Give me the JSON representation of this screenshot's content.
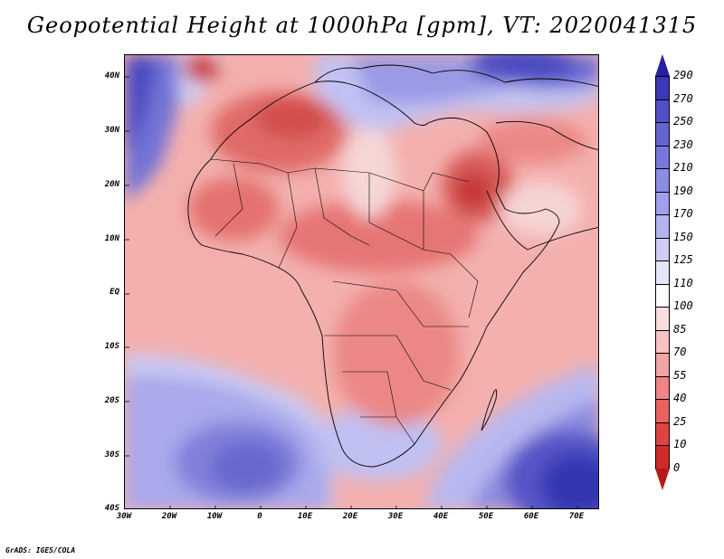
{
  "title": "Geopotential Height at 1000hPa [gpm], VT: 2020041315",
  "credit": "GrADS: IGES/COLA",
  "lat_labels": [
    "40N",
    "30N",
    "20N",
    "10N",
    "EQ",
    "10S",
    "20S",
    "30S",
    "40S"
  ],
  "lon_labels": [
    "30W",
    "20W",
    "10W",
    "0",
    "10E",
    "20E",
    "30E",
    "40E",
    "50E",
    "60E",
    "70E"
  ],
  "colorbar": {
    "levels": [
      "290",
      "270",
      "250",
      "230",
      "210",
      "190",
      "170",
      "150",
      "125",
      "110",
      "100",
      "85",
      "70",
      "55",
      "40",
      "25",
      "10",
      "0"
    ],
    "colors": [
      "#2a1fa0",
      "#3c36b8",
      "#5050c8",
      "#6464d2",
      "#7878dc",
      "#8c8ce4",
      "#a0a0ec",
      "#b4b4f0",
      "#cdcdf7",
      "#e6e6fb",
      "#ffffff",
      "#f9dede",
      "#f6c2c2",
      "#f3a4a4",
      "#ee8484",
      "#e86262",
      "#de4242",
      "#cf2a2a",
      "#b81818"
    ]
  }
}
